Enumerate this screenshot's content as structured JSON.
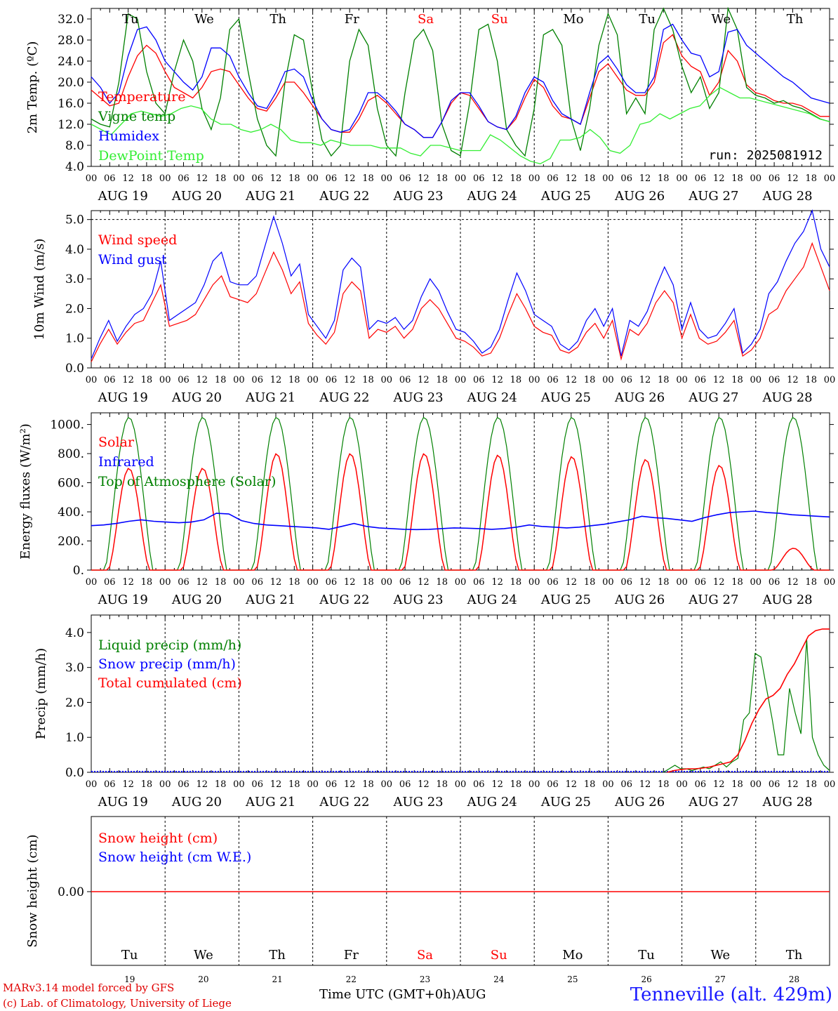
{
  "chart_data": [
    {
      "type": "line",
      "ylabel": "2m Temp. (ºC)",
      "ylim": [
        4,
        34
      ],
      "yticks": [
        "4.0",
        "8.0",
        "12.0",
        "16.0",
        "20.0",
        "24.0",
        "28.0",
        "32.0"
      ],
      "run_label": "run: 2025081912",
      "day_labels": [
        "Tu",
        "We",
        "Th",
        "Fr",
        "Sa",
        "Su",
        "Mo",
        "Tu",
        "We",
        "Th"
      ],
      "series": [
        {
          "name": "Temperature",
          "color": "#ff0000",
          "values": [
            18.5,
            17,
            15.5,
            16,
            21,
            25,
            27,
            25.5,
            22,
            19,
            18,
            17,
            19,
            22,
            22.5,
            22,
            19.5,
            17,
            15,
            14.5,
            17,
            20,
            20,
            18,
            15.5,
            13,
            11,
            10.5,
            10.5,
            13,
            16.5,
            17.5,
            16,
            14,
            12,
            11,
            9.5,
            9.5,
            12.5,
            16,
            18,
            17.5,
            15,
            12.5,
            11.5,
            11,
            13,
            17,
            20.5,
            19,
            15.5,
            13.5,
            13,
            12,
            17,
            22,
            23.5,
            21,
            18.5,
            17.5,
            17.5,
            20,
            27.5,
            29,
            25,
            23,
            22,
            17.5,
            20,
            26,
            24,
            19.5,
            18,
            17.5,
            16.5,
            16,
            16,
            15.5,
            14.5,
            13.5,
            13.5
          ]
        },
        {
          "name": "Vigne temp",
          "color": "#008000",
          "values": [
            13,
            12,
            11.5,
            20,
            33,
            32,
            22,
            16,
            14,
            22,
            28,
            24,
            15,
            11,
            17,
            30,
            32,
            22,
            13,
            8,
            6,
            20,
            29,
            28,
            18,
            9,
            6,
            8,
            24,
            30,
            27,
            15,
            8,
            6,
            18,
            28,
            30,
            26,
            12,
            7,
            6,
            16,
            30,
            31,
            24,
            11,
            8,
            6,
            15,
            29,
            30,
            27,
            13,
            7,
            15,
            27,
            33,
            29,
            14,
            17,
            14,
            30,
            34,
            30,
            23,
            18,
            21,
            15,
            18,
            34,
            30,
            19,
            17.5,
            17,
            16,
            16.5,
            15.5,
            15,
            14,
            13,
            12.5
          ]
        },
        {
          "name": "Humidex",
          "color": "#0000ff",
          "values": [
            21,
            19,
            16,
            18,
            25,
            30,
            30.5,
            28,
            24,
            22,
            20,
            18.5,
            21,
            26.5,
            26.5,
            25,
            21,
            18,
            15.5,
            15,
            18,
            22,
            22.5,
            21,
            16.5,
            13,
            11,
            10.5,
            11,
            14,
            18,
            18,
            16.5,
            14.5,
            12,
            11,
            9.5,
            9.5,
            12.5,
            16.5,
            18,
            18,
            15.5,
            12.5,
            11.5,
            11,
            13.5,
            18,
            21,
            20,
            16.5,
            14,
            13,
            12,
            18,
            23.5,
            25,
            22.5,
            19.5,
            18,
            18,
            21,
            30,
            31,
            28,
            25.5,
            25,
            21,
            22,
            29.5,
            30,
            27,
            25.5,
            24,
            22.5,
            21,
            20,
            18.5,
            17,
            16.5,
            16
          ]
        },
        {
          "name": "DewPoint Temp",
          "color": "#33ee33",
          "values": [
            12,
            11,
            10,
            12,
            14,
            14.5,
            14,
            13.5,
            14,
            15,
            15.5,
            15,
            13,
            12,
            12,
            11,
            10.5,
            11,
            12,
            11,
            9,
            8.5,
            8.5,
            8,
            9,
            8.5,
            8,
            8,
            8,
            7.5,
            7.5,
            7.5,
            6.5,
            6,
            8,
            8,
            7.5,
            7,
            7,
            7,
            10,
            9,
            7.5,
            6,
            5,
            4.5,
            5.5,
            9,
            9,
            9.5,
            11,
            9.5,
            7,
            6.5,
            8,
            12,
            12.5,
            14,
            13,
            14,
            15,
            15.5,
            17.5,
            19,
            18,
            17,
            17,
            16.5,
            16,
            15.5,
            15,
            14.5,
            14,
            13,
            12.5
          ]
        }
      ]
    },
    {
      "type": "line",
      "ylabel": "10m Wind (m/s)",
      "ylim": [
        0,
        5.3
      ],
      "yticks": [
        "0.0",
        "1.0",
        "2.0",
        "3.0",
        "4.0",
        "5.0"
      ],
      "series": [
        {
          "name": "Wind speed",
          "color": "#ff0000",
          "values": [
            0.2,
            0.8,
            1.3,
            0.8,
            1.2,
            1.5,
            1.6,
            2.2,
            2.8,
            1.4,
            1.5,
            1.6,
            1.8,
            2.3,
            2.8,
            3.1,
            2.4,
            2.3,
            2.2,
            2.5,
            3.2,
            3.9,
            3.3,
            2.5,
            2.9,
            1.5,
            1.1,
            0.8,
            1.2,
            2.5,
            2.9,
            2.6,
            1.0,
            1.3,
            1.2,
            1.4,
            1.0,
            1.3,
            2.0,
            2.3,
            2.0,
            1.5,
            1.0,
            0.9,
            0.7,
            0.4,
            0.5,
            1.0,
            1.8,
            2.5,
            2.0,
            1.4,
            1.2,
            1.1,
            0.6,
            0.5,
            0.7,
            1.2,
            1.5,
            1.0,
            1.6,
            0.3,
            1.3,
            1.1,
            1.5,
            2.2,
            2.6,
            2.2,
            1.0,
            1.8,
            1.0,
            0.8,
            0.9,
            1.2,
            1.6,
            0.4,
            0.6,
            1.0,
            1.8,
            2.0,
            2.6,
            3.0,
            3.4,
            4.2,
            3.4,
            2.6
          ]
        },
        {
          "name": "Wind gust",
          "color": "#0000ff",
          "values": [
            0.3,
            1.0,
            1.6,
            0.9,
            1.4,
            1.8,
            2.0,
            2.5,
            3.6,
            1.6,
            1.8,
            2.0,
            2.2,
            2.8,
            3.6,
            3.9,
            2.9,
            2.8,
            2.8,
            3.1,
            4.1,
            5.1,
            4.2,
            3.1,
            3.5,
            1.8,
            1.4,
            1.0,
            1.6,
            3.3,
            3.7,
            3.4,
            1.3,
            1.6,
            1.5,
            1.7,
            1.3,
            1.6,
            2.4,
            3.0,
            2.6,
            1.9,
            1.3,
            1.2,
            0.9,
            0.5,
            0.7,
            1.3,
            2.3,
            3.2,
            2.6,
            1.8,
            1.6,
            1.4,
            0.8,
            0.6,
            0.9,
            1.6,
            2.0,
            1.4,
            2.0,
            0.4,
            1.6,
            1.4,
            1.9,
            2.7,
            3.4,
            2.8,
            1.3,
            2.2,
            1.3,
            1.0,
            1.1,
            1.5,
            2.0,
            0.5,
            0.8,
            1.3,
            2.5,
            2.9,
            3.6,
            4.2,
            4.6,
            5.4,
            4.0,
            3.4
          ]
        }
      ]
    },
    {
      "type": "line",
      "ylabel": "Energy fluxes (W/m²)",
      "ylim": [
        0,
        1080
      ],
      "yticks": [
        "0.",
        "200.",
        "400.",
        "600.",
        "800.",
        "1000."
      ],
      "series": [
        {
          "name": "Solar",
          "color": "#ff0000",
          "peaks": [
            700,
            700,
            800,
            800,
            800,
            790,
            780,
            760,
            720,
            150
          ],
          "notes": "daily peaks near 13h UTC"
        },
        {
          "name": "Infrared",
          "color": "#0000ff",
          "values": [
            305,
            310,
            320,
            335,
            345,
            335,
            330,
            325,
            330,
            345,
            390,
            385,
            340,
            320,
            310,
            305,
            300,
            295,
            290,
            280,
            300,
            320,
            300,
            290,
            285,
            280,
            278,
            280,
            285,
            290,
            288,
            285,
            280,
            285,
            295,
            310,
            300,
            295,
            290,
            295,
            305,
            315,
            330,
            345,
            370,
            360,
            355,
            345,
            335,
            360,
            380,
            395,
            400,
            405,
            395,
            390,
            380,
            375,
            370,
            365
          ]
        },
        {
          "name": "Top of Atmosphere (Solar)",
          "color": "#008000",
          "peak": 1050
        }
      ]
    },
    {
      "type": "line",
      "ylabel": "Precip (mm/h)",
      "ylim": [
        0,
        4.5
      ],
      "yticks": [
        "0.0",
        "1.0",
        "2.0",
        "3.0",
        "4.0"
      ],
      "series": [
        {
          "name": "Liquid precip (mm/h)",
          "color": "#008000",
          "values_last_days": [
            0,
            0.1,
            0.2,
            0.1,
            0.1,
            0.05,
            0.1,
            0.15,
            0.1,
            0.2,
            0.3,
            0.15,
            0.3,
            0.4,
            1.5,
            1.7,
            3.4,
            3.3,
            2.4,
            1.5,
            0.5,
            0.5,
            2.4,
            1.7,
            1.1,
            3.8,
            1.0,
            0.5,
            0.2,
            0.05
          ]
        },
        {
          "name": "Snow precip (mm/h)",
          "color": "#0000ff",
          "values": [
            0
          ]
        },
        {
          "name": "Total cumulated (cm)",
          "color": "#ff0000",
          "values_last_days": [
            0,
            0.05,
            0.08,
            0.1,
            0.1,
            0.12,
            0.15,
            0.2,
            0.25,
            0.3,
            0.5,
            0.9,
            1.4,
            1.8,
            2.1,
            2.2,
            2.4,
            2.8,
            3.1,
            3.5,
            3.9,
            4.05,
            4.1,
            4.1
          ]
        }
      ]
    },
    {
      "type": "line",
      "ylabel": "Snow height (cm)",
      "ytick": "0.00",
      "series": [
        {
          "name": "Snow height (cm)",
          "color": "#ff0000",
          "values": [
            0
          ]
        },
        {
          "name": "Snow height (cm W.E.)",
          "color": "#0000ff",
          "values": [
            0
          ]
        }
      ]
    }
  ],
  "x_axis": {
    "hour_ticks": [
      "00",
      "06",
      "12",
      "18"
    ],
    "dates": [
      "AUG 19",
      "AUG 20",
      "AUG 21",
      "AUG 22",
      "AUG 23",
      "AUG 24",
      "AUG 25",
      "AUG 26",
      "AUG 27",
      "AUG 28"
    ],
    "day_numbers": [
      "19",
      "20",
      "21",
      "22",
      "23",
      "24",
      "25",
      "26",
      "27",
      "28"
    ],
    "weekday_colors": [
      "#000000",
      "#000000",
      "#000000",
      "#000000",
      "#ff0000",
      "#ff0000",
      "#000000",
      "#000000",
      "#000000",
      "#000000"
    ],
    "title": "Time UTC (GMT+0h)AUG"
  },
  "footer": {
    "credit1": "MARv3.14 model forced by GFS",
    "credit2": "(c) Lab. of Climatology, University of Liege",
    "location": "Tenneville (alt. 429m)"
  }
}
